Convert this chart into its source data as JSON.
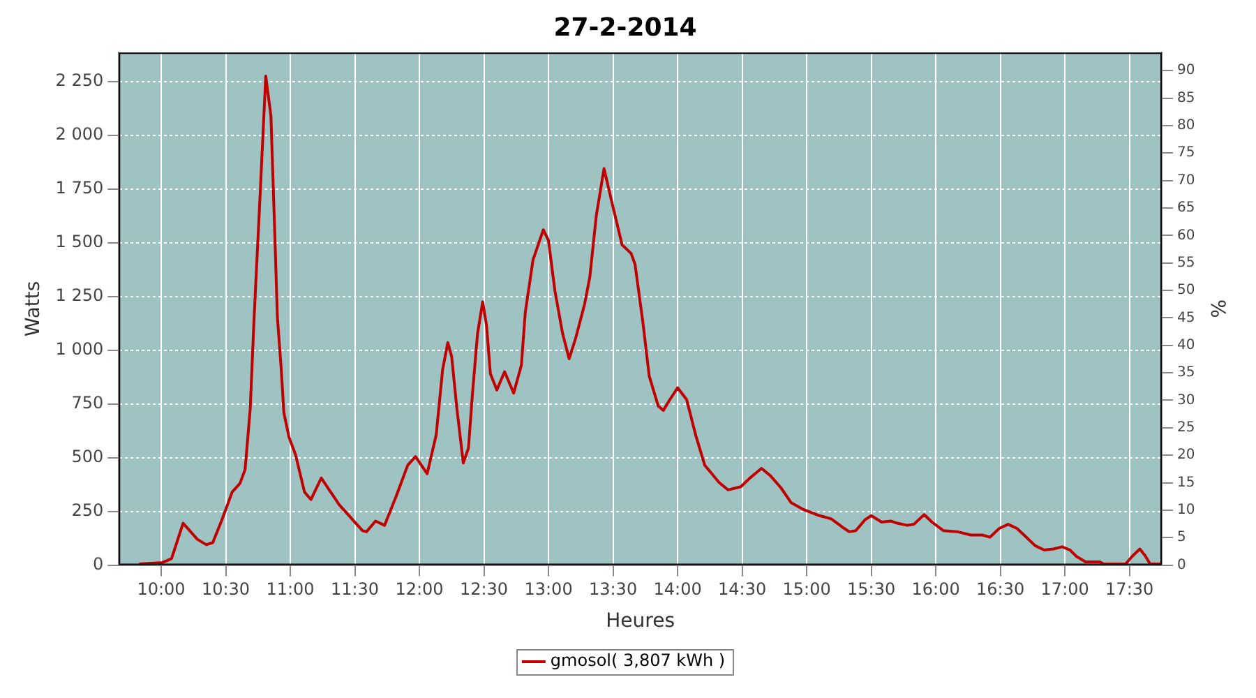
{
  "chart_data": {
    "type": "line",
    "title": "27-2-2014",
    "xlabel": "Heures",
    "ylabel": "Watts",
    "y2label": "%",
    "x": [
      9.83,
      10.01,
      10.08,
      10.17,
      10.28,
      10.35,
      10.4,
      10.47,
      10.55,
      10.61,
      10.65,
      10.69,
      10.72,
      10.76,
      10.81,
      10.85,
      10.88,
      10.9,
      10.93,
      10.95,
      10.99,
      11.04,
      11.11,
      11.16,
      11.24,
      11.38,
      11.47,
      11.56,
      11.59,
      11.66,
      11.73,
      11.82,
      11.91,
      11.97,
      12.06,
      12.13,
      12.18,
      12.22,
      12.25,
      12.29,
      12.34,
      12.38,
      12.41,
      12.45,
      12.49,
      12.52,
      12.55,
      12.6,
      12.66,
      12.73,
      12.79,
      12.82,
      12.88,
      12.96,
      13.0,
      13.05,
      13.11,
      13.16,
      13.21,
      13.28,
      13.32,
      13.37,
      13.43,
      13.5,
      13.57,
      13.64,
      13.67,
      13.73,
      13.78,
      13.85,
      13.89,
      13.94,
      14.0,
      14.07,
      14.14,
      14.21,
      14.32,
      14.39,
      14.49,
      14.56,
      14.65,
      14.72,
      14.8,
      14.88,
      14.97,
      15.1,
      15.19,
      15.28,
      15.33,
      15.38,
      15.45,
      15.5,
      15.58,
      15.65,
      15.7,
      15.78,
      15.83,
      15.91,
      15.97,
      16.06,
      16.17,
      16.27,
      16.36,
      16.42,
      16.49,
      16.56,
      16.63,
      16.7,
      16.77,
      16.84,
      16.91,
      16.98,
      17.04,
      17.09,
      17.16,
      17.27,
      17.3,
      17.47,
      17.52,
      17.58,
      17.62,
      17.66,
      17.74
    ],
    "series": [
      {
        "name": "gmosol( 3,807 kWh )",
        "color": "#c00000",
        "values": [
          5,
          12,
          30,
          195,
          120,
          95,
          105,
          210,
          340,
          380,
          445,
          730,
          1155,
          1645,
          2275,
          2090,
          1540,
          1155,
          910,
          710,
          595,
          515,
          340,
          305,
          405,
          280,
          220,
          160,
          155,
          205,
          185,
          320,
          465,
          505,
          425,
          605,
          910,
          1035,
          970,
          730,
          475,
          545,
          790,
          1075,
          1225,
          1115,
          890,
          815,
          900,
          800,
          930,
          1175,
          1420,
          1560,
          1510,
          1275,
          1075,
          960,
          1055,
          1215,
          1340,
          1625,
          1845,
          1665,
          1490,
          1450,
          1400,
          1135,
          880,
          740,
          720,
          770,
          825,
          770,
          605,
          465,
          385,
          350,
          365,
          405,
          450,
          415,
          360,
          290,
          260,
          230,
          215,
          175,
          155,
          160,
          210,
          230,
          200,
          205,
          195,
          185,
          190,
          235,
          200,
          160,
          155,
          140,
          140,
          130,
          170,
          190,
          170,
          130,
          90,
          70,
          75,
          85,
          70,
          40,
          15,
          15,
          5,
          5,
          40,
          75,
          45,
          5,
          5
        ]
      }
    ],
    "xlim": [
      9.672,
      17.75
    ],
    "xticks": [
      {
        "value": 10,
        "label": "10:00"
      },
      {
        "value": 10.5,
        "label": "10:30"
      },
      {
        "value": 11,
        "label": "11:00"
      },
      {
        "value": 11.5,
        "label": "11:30"
      },
      {
        "value": 12,
        "label": "12:00"
      },
      {
        "value": 12.5,
        "label": "12:30"
      },
      {
        "value": 13,
        "label": "13:00"
      },
      {
        "value": 13.5,
        "label": "13:30"
      },
      {
        "value": 14,
        "label": "14:00"
      },
      {
        "value": 14.5,
        "label": "14:30"
      },
      {
        "value": 15,
        "label": "15:00"
      },
      {
        "value": 15.5,
        "label": "15:30"
      },
      {
        "value": 16,
        "label": "16:00"
      },
      {
        "value": 16.5,
        "label": "16:30"
      },
      {
        "value": 17,
        "label": "17:00"
      },
      {
        "value": 17.5,
        "label": "17:30"
      }
    ],
    "ylim": [
      0,
      2385
    ],
    "yticks": [
      0,
      250,
      500,
      750,
      {
        "value": 1000,
        "label": "1 000"
      },
      {
        "value": 1250,
        "label": "1 250"
      },
      {
        "value": 1500,
        "label": "1 500"
      },
      {
        "value": 1750,
        "label": "1 750"
      },
      {
        "value": 2000,
        "label": "2 000"
      },
      {
        "value": 2250,
        "label": "2 250"
      }
    ],
    "y2lim": [
      0,
      93.3
    ],
    "y2ticks": [
      0,
      5,
      10,
      15,
      20,
      25,
      30,
      35,
      40,
      45,
      50,
      55,
      60,
      65,
      70,
      75,
      80,
      85,
      90
    ],
    "grid": true,
    "legend": "bottom",
    "marker": "none",
    "line_style": "solid"
  }
}
